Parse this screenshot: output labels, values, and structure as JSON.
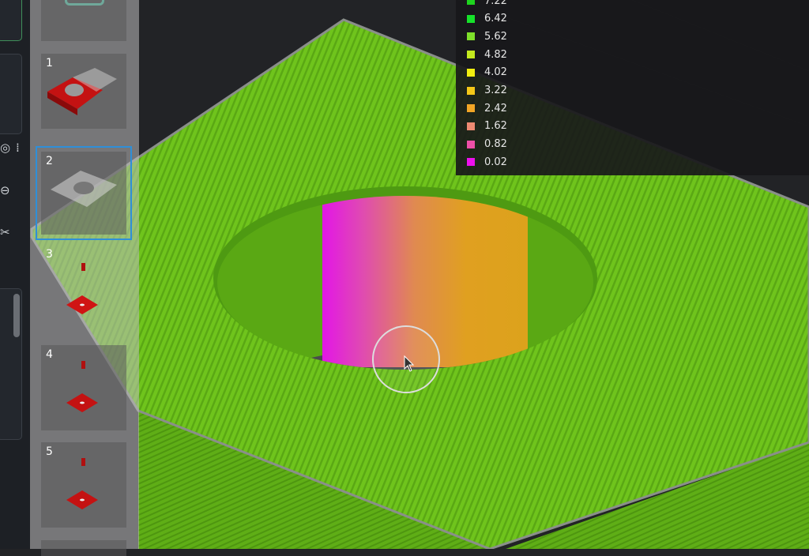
{
  "legend": {
    "items": [
      {
        "value": "7.22",
        "color": "#1ed41e"
      },
      {
        "value": "6.42",
        "color": "#16e22a"
      },
      {
        "value": "5.62",
        "color": "#7ee02a"
      },
      {
        "value": "4.82",
        "color": "#c4ea1e"
      },
      {
        "value": "4.02",
        "color": "#f2ef10"
      },
      {
        "value": "3.22",
        "color": "#f5c818"
      },
      {
        "value": "2.42",
        "color": "#f2a626"
      },
      {
        "value": "1.62",
        "color": "#ee8a72"
      },
      {
        "value": "0.82",
        "color": "#ee4fa8"
      },
      {
        "value": "0.02",
        "color": "#ee10ee"
      }
    ]
  },
  "plates": [
    {
      "number": ""
    },
    {
      "number": "1"
    },
    {
      "number": "2",
      "selected": true
    },
    {
      "number": "3"
    },
    {
      "number": "4"
    },
    {
      "number": "5"
    }
  ],
  "colors": {
    "model": "#6cc21a",
    "accent": "#2f8fd8",
    "part": "#c41212"
  }
}
